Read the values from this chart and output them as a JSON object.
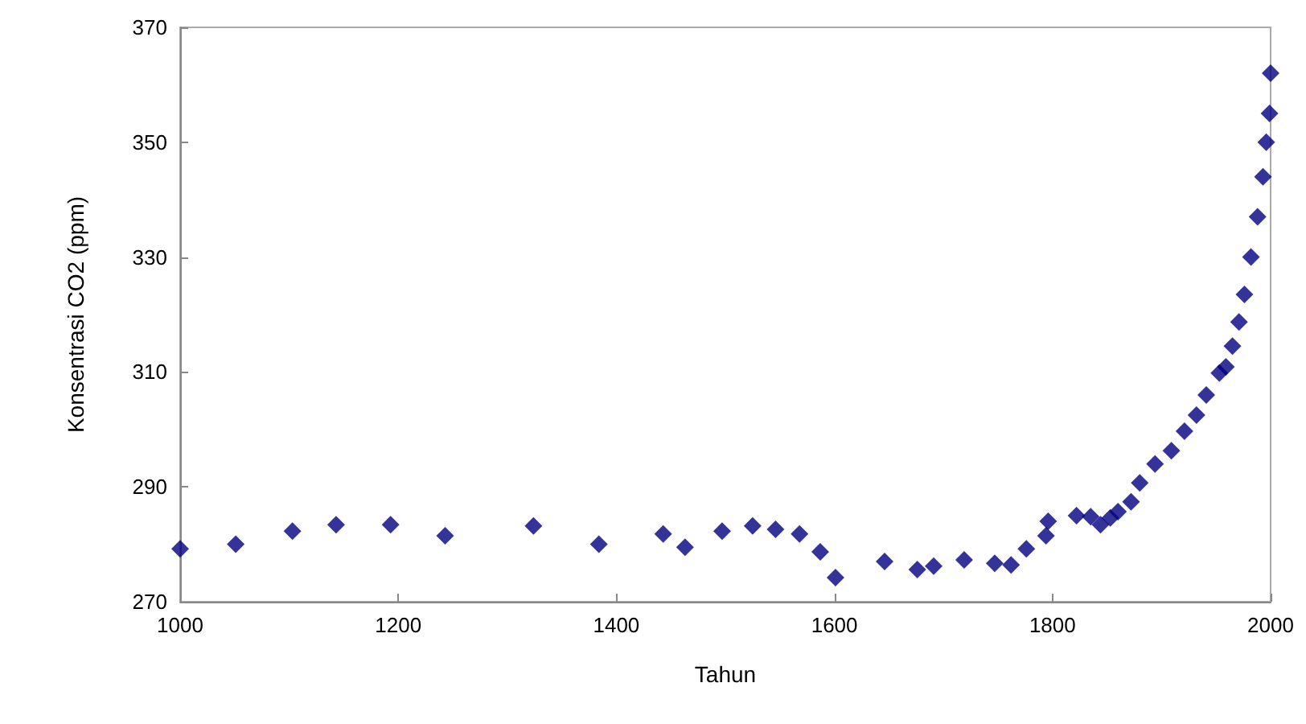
{
  "chart_data": {
    "type": "scatter",
    "xlabel": "Tahun",
    "ylabel": "Konsentrasi CO2 (ppm)",
    "marker": "diamond",
    "grid": false,
    "x": [
      1000,
      1051,
      1103,
      1143,
      1193,
      1243,
      1324,
      1384,
      1443,
      1463,
      1497,
      1525,
      1546,
      1568,
      1587,
      1601,
      1646,
      1676,
      1691,
      1719,
      1747,
      1762,
      1776,
      1794,
      1796,
      1822,
      1835,
      1844,
      1853,
      1860,
      1872,
      1880,
      1894,
      1909,
      1921,
      1932,
      1941,
      1953,
      1959,
      1965,
      1971,
      1976,
      1982,
      1988,
      1993,
      1996,
      1999,
      2000
    ],
    "series": [
      {
        "color": "#000080",
        "values": [
          279.2,
          280,
          282.3,
          283.4,
          283.4,
          281.5,
          283.2,
          280,
          281.8,
          279.5,
          282.3,
          283.2,
          282.6,
          281.8,
          278.7,
          274.2,
          277,
          275.6,
          276.2,
          277.3,
          276.7,
          276.4,
          279.2,
          281.5,
          284,
          285,
          284.8,
          283.4,
          284.6,
          285.7,
          287.4,
          290.7,
          294,
          296.3,
          299.7,
          302.5,
          306,
          309.8,
          310.9,
          314.5,
          318.7,
          323.5,
          330,
          337,
          344,
          350,
          355,
          362
        ]
      }
    ],
    "xlim": [
      1000,
      2000
    ],
    "xticks": [
      1000,
      1200,
      1400,
      1600,
      1800,
      2000
    ],
    "ylim": [
      270,
      370
    ],
    "yticks": [
      270,
      290,
      310,
      330,
      350,
      370
    ]
  }
}
